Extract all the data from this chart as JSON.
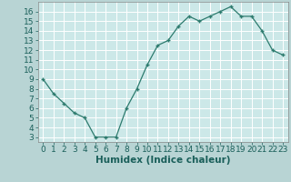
{
  "x": [
    0,
    1,
    2,
    3,
    4,
    5,
    6,
    7,
    8,
    9,
    10,
    11,
    12,
    13,
    14,
    15,
    16,
    17,
    18,
    19,
    20,
    21,
    22,
    23
  ],
  "y": [
    9.0,
    7.5,
    6.5,
    5.5,
    5.0,
    3.0,
    3.0,
    3.0,
    6.0,
    8.0,
    10.5,
    12.5,
    13.0,
    14.5,
    15.5,
    15.0,
    15.5,
    16.0,
    16.5,
    15.5,
    15.5,
    14.0,
    12.0,
    11.5
  ],
  "xlabel": "Humidex (Indice chaleur)",
  "xlim": [
    -0.5,
    23.5
  ],
  "ylim": [
    2.5,
    17.0
  ],
  "yticks": [
    3,
    4,
    5,
    6,
    7,
    8,
    9,
    10,
    11,
    12,
    13,
    14,
    15,
    16
  ],
  "xticks": [
    0,
    1,
    2,
    3,
    4,
    5,
    6,
    7,
    8,
    9,
    10,
    11,
    12,
    13,
    14,
    15,
    16,
    17,
    18,
    19,
    20,
    21,
    22,
    23
  ],
  "line_color": "#2d7b6e",
  "bg_color": "#cce8e8",
  "grid_color": "#ffffff",
  "outer_bg": "#b8d4d4",
  "tick_fontsize": 6.5,
  "xlabel_fontsize": 7.5
}
